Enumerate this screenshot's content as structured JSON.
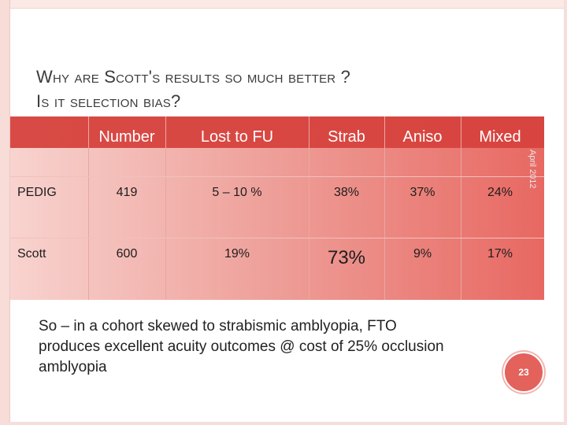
{
  "slide": {
    "title_line1": "Why are Scott's results so much better ?",
    "title_line2": "Is it selection bias?",
    "side_date": "April 2012",
    "note": "So – in a cohort skewed to strabismic amblyopia, FTO produces excellent acuity outcomes @ cost of 25% occlusion amblyopia",
    "page_number": "23"
  },
  "table": {
    "headers": [
      "Number",
      "Lost to FU",
      "Strab",
      "Aniso",
      "Mixed"
    ],
    "rows": [
      {
        "label": "PEDIG",
        "cells": [
          "419",
          "5 – 10 %",
          "38%",
          "37%",
          "24%"
        ]
      },
      {
        "label": "Scott",
        "cells": [
          "600",
          "19%",
          "73%",
          "9%",
          "17%"
        ]
      }
    ]
  },
  "colors": {
    "header_band": "#d8443f",
    "table_gradient_light": "#f8d3cf",
    "table_gradient_dark": "#e86862",
    "badge": "#e3625b"
  }
}
